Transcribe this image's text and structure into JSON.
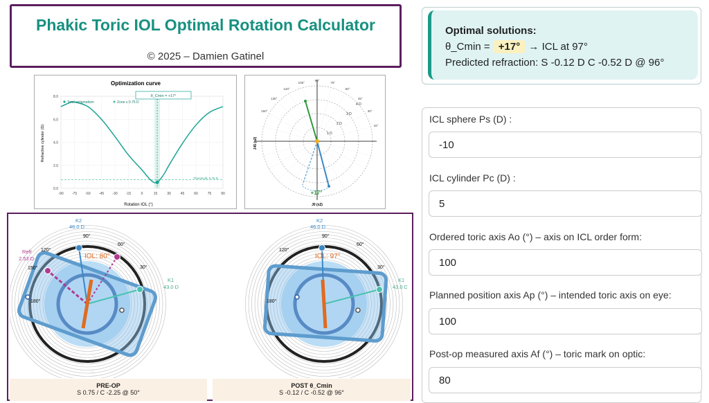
{
  "header": {
    "title": "Phakic Toric IOL Optimal Rotation Calculator",
    "copyright": "© 2025 – Damien Gatinel"
  },
  "solutions": {
    "heading": "Optimal solutions:",
    "theta_label": "θ_Cmin =",
    "theta_value": "+17°",
    "icl_text": "→ ICL at 97°",
    "refraction": "Predicted refraction: S -0.12 D C -0.52 D @ 96°"
  },
  "optimization_chart": {
    "title": "Optimization curve",
    "xlabel": "Rotation IOL (°)",
    "ylabel": "Refractive cylinder (D)",
    "legend_total": "Total astigmatism",
    "legend_zone": "Zone ≤ 0.75 D",
    "marker_label": "θ_Cmin = +17°",
    "threshold_label": "Threshold: 0.75 D",
    "xticks": [
      "-90",
      "-75",
      "-60",
      "-45",
      "-30",
      "-15",
      "0",
      "15",
      "30",
      "45",
      "60",
      "75",
      "90"
    ],
    "yticks": [
      "0.0",
      "2.0",
      "4.0",
      "6.0",
      "8.0"
    ],
    "accent": "#1aa394"
  },
  "chart_data": {
    "type": "line",
    "title": "Optimization curve",
    "xlabel": "Rotation IOL (°)",
    "ylabel": "Refractive cylinder (D)",
    "xlim": [
      -90,
      90
    ],
    "ylim": [
      0,
      8
    ],
    "series": [
      {
        "name": "Total astigmatism",
        "x": [
          -90,
          -80,
          -75,
          -60,
          -45,
          -30,
          -15,
          0,
          10,
          17,
          25,
          30,
          45,
          60,
          75,
          90
        ],
        "values": [
          7.1,
          7.45,
          7.5,
          7.1,
          6.0,
          4.5,
          2.9,
          1.6,
          0.7,
          0.52,
          1.3,
          2.0,
          3.9,
          5.5,
          6.6,
          7.1
        ]
      }
    ],
    "threshold": 0.75,
    "optimum_x": 17,
    "grid": true,
    "legend": "top-left"
  },
  "polar_plot": {
    "ylabel": "J45 (x2)",
    "xlabel": "J0 (x2)",
    "result_label": "+17°",
    "ring_labels": [
      "1 D",
      "2 D",
      "3 D",
      "4 D"
    ],
    "angle_labels": [
      "60°",
      "75°",
      "90°",
      "105°",
      "120°",
      "135°",
      "150°",
      "45°",
      "30°",
      "15°"
    ]
  },
  "preop": {
    "k2_label": "K2",
    "k2_value": "46.0 D",
    "k1_label": "K1",
    "k1_value": "43.0 D",
    "refr_label": "Refr",
    "refr_value": "2.53 D",
    "iol_label": "IOL: 80°",
    "angles": [
      "90°",
      "120°",
      "60°",
      "30°",
      "150°",
      "180°"
    ],
    "caption_title": "PRE-OP",
    "caption_values": "S 0.75  /  C -2.25  @ 50°"
  },
  "postop": {
    "k2_label": "K2",
    "k2_value": "46.0 D",
    "k1_label": "K1",
    "k1_value": "43.0 D",
    "iol_label": "IOL: 97°",
    "angles": [
      "90°",
      "120°",
      "60°",
      "30°",
      "180°"
    ],
    "caption_title": "POST θ_Cmin",
    "caption_values": "S -0.12  /  C -0.52  @ 96°"
  },
  "form": {
    "sphere_label": "ICL sphere Ps (D) :",
    "sphere_value": "-10",
    "cylinder_label": "ICL cylinder Pc (D) :",
    "cylinder_value": "5",
    "ordered_label": "Ordered toric axis Ao (°) – axis on ICL order form:",
    "ordered_value": "100",
    "planned_label": "Planned position axis Ap (°) – intended toric axis on eye:",
    "planned_value": "100",
    "postop_label": "Post-op measured axis Af (°) – toric mark on optic:",
    "postop_value": "80"
  }
}
